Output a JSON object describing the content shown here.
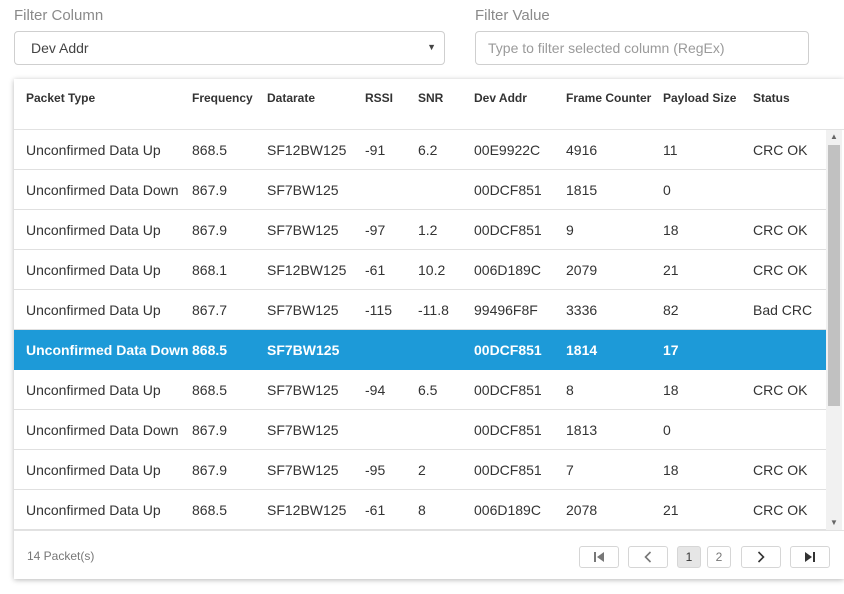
{
  "filters": {
    "column_label": "Filter Column",
    "column_value": "Dev Addr",
    "value_label": "Filter Value",
    "value_placeholder": "Type to filter selected column (RegEx)"
  },
  "table": {
    "headers": [
      "Packet Type",
      "Frequency",
      "Datarate",
      "RSSI",
      "SNR",
      "Dev Addr",
      "Frame Counter",
      "Payload Size",
      "Status"
    ],
    "rows": [
      [
        "Unconfirmed Data Up",
        "868.5",
        "SF12BW125",
        "-91",
        "6.2",
        "00E9922C",
        "4916",
        "11",
        "CRC OK"
      ],
      [
        "Unconfirmed Data Down",
        "867.9",
        "SF7BW125",
        "",
        "",
        "00DCF851",
        "1815",
        "0",
        ""
      ],
      [
        "Unconfirmed Data Up",
        "867.9",
        "SF7BW125",
        "-97",
        "1.2",
        "00DCF851",
        "9",
        "18",
        "CRC OK"
      ],
      [
        "Unconfirmed Data Up",
        "868.1",
        "SF12BW125",
        "-61",
        "10.2",
        "006D189C",
        "2079",
        "21",
        "CRC OK"
      ],
      [
        "Unconfirmed Data Up",
        "867.7",
        "SF7BW125",
        "-115",
        "-11.8",
        "99496F8F",
        "3336",
        "82",
        "Bad CRC"
      ],
      [
        "Unconfirmed Data Down",
        "868.5",
        "SF7BW125",
        "",
        "",
        "00DCF851",
        "1814",
        "17",
        ""
      ],
      [
        "Unconfirmed Data Up",
        "868.5",
        "SF7BW125",
        "-94",
        "6.5",
        "00DCF851",
        "8",
        "18",
        "CRC OK"
      ],
      [
        "Unconfirmed Data Down",
        "867.9",
        "SF7BW125",
        "",
        "",
        "00DCF851",
        "1813",
        "0",
        ""
      ],
      [
        "Unconfirmed Data Up",
        "867.9",
        "SF7BW125",
        "-95",
        "2",
        "00DCF851",
        "7",
        "18",
        "CRC OK"
      ],
      [
        "Unconfirmed Data Up",
        "868.5",
        "SF12BW125",
        "-61",
        "8",
        "006D189C",
        "2078",
        "21",
        "CRC OK"
      ]
    ],
    "selected_row_index": 5
  },
  "footer": {
    "packet_count": "14 Packet(s)",
    "pages": [
      "1",
      "2"
    ],
    "current_page": "1"
  },
  "colors": {
    "selected_row": "#1d9ad8"
  }
}
